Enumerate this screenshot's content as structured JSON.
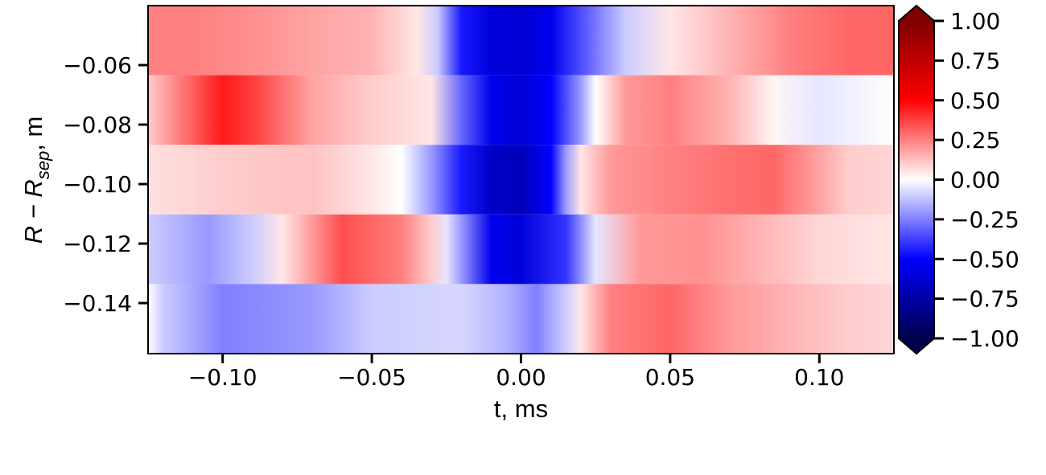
{
  "chart_data": {
    "type": "heatmap",
    "xlabel": "t, ms",
    "ylabel": {
      "main": "R − R",
      "subscript": "sep",
      "suffix": ", m"
    },
    "xlim": [
      -0.125,
      0.125
    ],
    "ylim": [
      -0.157,
      -0.04
    ],
    "x_ticks": [
      {
        "value": -0.1,
        "label": "−0.10"
      },
      {
        "value": -0.05,
        "label": "−0.05"
      },
      {
        "value": 0.0,
        "label": "0.00"
      },
      {
        "value": 0.05,
        "label": "0.05"
      },
      {
        "value": 0.1,
        "label": "0.10"
      }
    ],
    "y_ticks": [
      {
        "value": -0.06,
        "label": "−0.06"
      },
      {
        "value": -0.08,
        "label": "−0.08"
      },
      {
        "value": -0.1,
        "label": "−0.10"
      },
      {
        "value": -0.12,
        "label": "−0.12"
      },
      {
        "value": -0.14,
        "label": "−0.14"
      }
    ],
    "colorbar": {
      "range": [
        -1.0,
        1.0
      ],
      "extend": "both",
      "colormap": "seismic",
      "ticks": [
        {
          "value": 1.0,
          "label": "1.00"
        },
        {
          "value": 0.75,
          "label": "0.75"
        },
        {
          "value": 0.5,
          "label": "0.50"
        },
        {
          "value": 0.25,
          "label": "0.25"
        },
        {
          "value": 0.0,
          "label": "0.00"
        },
        {
          "value": -0.25,
          "label": "−0.25"
        },
        {
          "value": -0.5,
          "label": "−0.50"
        },
        {
          "value": -0.75,
          "label": "−0.75"
        },
        {
          "value": -1.0,
          "label": "−1.00"
        }
      ]
    },
    "rows": [
      {
        "y_center": -0.0517,
        "y_span": [
          -0.0634,
          -0.04
        ],
        "t": [
          -0.125,
          -0.11,
          -0.09,
          -0.07,
          -0.05,
          -0.035,
          -0.028,
          -0.02,
          -0.01,
          0.0,
          0.01,
          0.02,
          0.035,
          0.05,
          0.07,
          0.09,
          0.11,
          0.125
        ],
        "v": [
          0.25,
          0.25,
          0.22,
          0.18,
          0.15,
          0.05,
          -0.1,
          -0.45,
          -0.6,
          -0.62,
          -0.55,
          -0.35,
          -0.1,
          0.05,
          0.15,
          0.25,
          0.3,
          0.3
        ]
      },
      {
        "y_center": -0.0751,
        "y_span": [
          -0.0868,
          -0.0634
        ],
        "t": [
          -0.125,
          -0.115,
          -0.1,
          -0.09,
          -0.07,
          -0.05,
          -0.03,
          -0.02,
          -0.01,
          0.0,
          0.01,
          0.02,
          0.025,
          0.035,
          0.05,
          0.07,
          0.085,
          0.1,
          0.115,
          0.125
        ],
        "v": [
          0.1,
          0.25,
          0.45,
          0.38,
          0.18,
          0.1,
          0.05,
          -0.3,
          -0.55,
          -0.62,
          -0.5,
          -0.2,
          0.0,
          0.2,
          0.25,
          0.15,
          0.02,
          -0.05,
          -0.02,
          0.0
        ]
      },
      {
        "y_center": -0.0985,
        "y_span": [
          -0.1102,
          -0.0868
        ],
        "t": [
          -0.125,
          -0.1,
          -0.07,
          -0.05,
          -0.04,
          -0.03,
          -0.02,
          -0.01,
          0.0,
          0.01,
          0.015,
          0.02,
          0.03,
          0.05,
          0.07,
          0.085,
          0.1,
          0.11,
          0.125
        ],
        "v": [
          0.06,
          0.1,
          0.12,
          0.05,
          0.0,
          -0.2,
          -0.45,
          -0.65,
          -0.7,
          -0.5,
          -0.2,
          0.05,
          0.2,
          0.25,
          0.28,
          0.3,
          0.18,
          0.1,
          0.08
        ]
      },
      {
        "y_center": -0.1219,
        "y_span": [
          -0.1336,
          -0.1102
        ],
        "t": [
          -0.125,
          -0.105,
          -0.09,
          -0.08,
          -0.07,
          -0.06,
          -0.04,
          -0.03,
          -0.025,
          -0.02,
          -0.01,
          0.0,
          0.015,
          0.025,
          0.04,
          0.06,
          0.08,
          0.1,
          0.125
        ],
        "v": [
          -0.1,
          -0.2,
          -0.1,
          0.05,
          0.2,
          0.35,
          0.25,
          0.1,
          -0.05,
          -0.2,
          -0.55,
          -0.6,
          -0.4,
          -0.05,
          0.2,
          0.22,
          0.15,
          0.08,
          0.05
        ]
      },
      {
        "y_center": -0.1453,
        "y_span": [
          -0.157,
          -0.1336
        ],
        "t": [
          -0.125,
          -0.12,
          -0.1,
          -0.07,
          -0.05,
          -0.02,
          -0.005,
          0.005,
          0.015,
          0.02,
          0.03,
          0.05,
          0.07,
          0.09,
          0.11,
          0.125
        ],
        "v": [
          0.0,
          -0.1,
          -0.25,
          -0.2,
          -0.1,
          -0.08,
          -0.15,
          -0.25,
          -0.1,
          0.05,
          0.25,
          0.3,
          0.2,
          0.15,
          0.1,
          0.08
        ]
      }
    ]
  }
}
